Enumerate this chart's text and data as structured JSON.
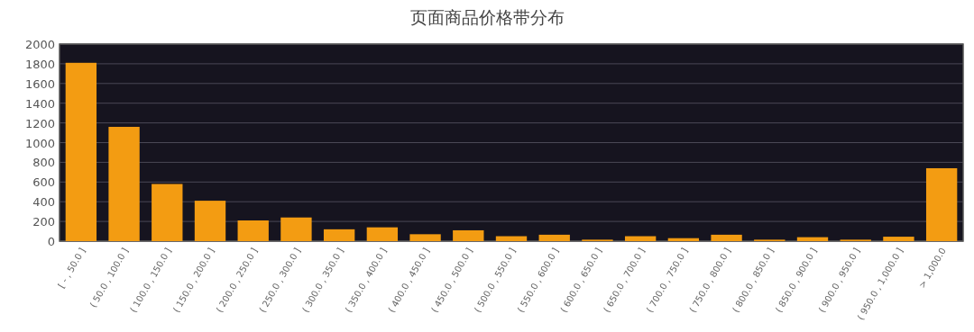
{
  "chart_data": {
    "type": "bar",
    "title": "页面商品价格带分布",
    "categories": [
      "[ -  , 50.0 ]",
      "( 50.0 , 100.0 ]",
      "( 100.0 , 150.0 ]",
      "( 150.0 , 200.0 ]",
      "( 200.0 , 250.0 ]",
      "( 250.0 , 300.0 ]",
      "( 300.0 , 350.0 ]",
      "( 350.0 , 400.0 ]",
      "( 400.0 , 450.0 ]",
      "( 450.0 , 500.0 ]",
      "( 500.0 , 550.0 ]",
      "( 550.0 , 600.0 ]",
      "( 600.0 , 650.0 ]",
      "( 650.0 , 700.0 ]",
      "( 700.0 , 750.0 ]",
      "( 750.0 , 800.0 ]",
      "( 800.0 , 850.0 ]",
      "( 850.0 , 900.0 ]",
      "( 900.0 , 950.0 ]",
      "( 950.0 , 1,000.0 ]",
      "> 1,000.0"
    ],
    "values": [
      1810,
      1160,
      580,
      410,
      210,
      240,
      120,
      140,
      70,
      110,
      50,
      65,
      15,
      50,
      30,
      65,
      15,
      40,
      15,
      45,
      740
    ],
    "color": "#f39c12",
    "ylim": [
      0,
      2000
    ],
    "yticks": [
      0,
      200,
      400,
      600,
      800,
      1000,
      1200,
      1400,
      1600,
      1800,
      2000
    ],
    "grid": "y"
  }
}
